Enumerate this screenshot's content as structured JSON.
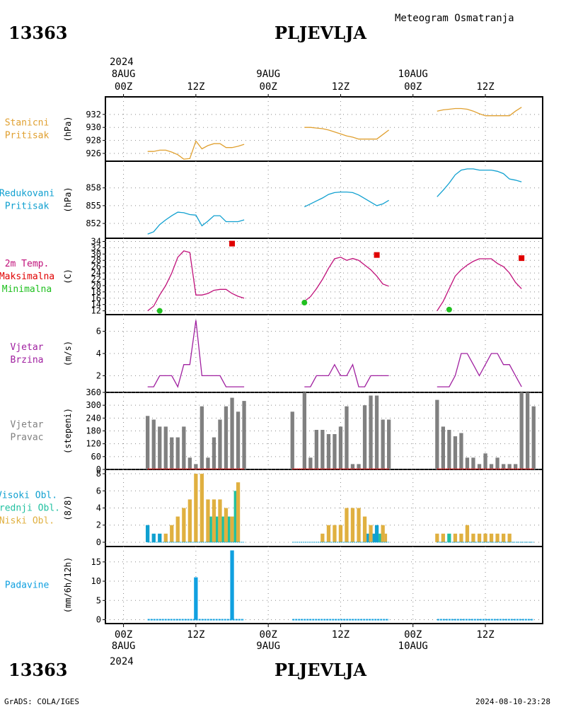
{
  "header": {
    "station_id": "13363",
    "station_name": "PLJEVLJA",
    "product": "Meteogram Osmatranja"
  },
  "footer": {
    "station_id": "13363",
    "station_name": "PLJEVLJA",
    "credit": "GrADS: COLA/IGES",
    "timestamp": "2024-08-10-23:28"
  },
  "colors": {
    "pressure": "#e0a030",
    "reduced": "#10a0d0",
    "temp": "#c0107a",
    "tmax": "#e00000",
    "tmin": "#20c020",
    "wind": "#a020a0",
    "dir": "#808080",
    "high": "#10a0d0",
    "mid": "#20c0a0",
    "low": "#e0b040",
    "precip": "#10a0e0"
  },
  "time_axis": {
    "top_year": "2024",
    "top_labels": [
      {
        "t": 0,
        "date": "8AUG",
        "hour": "00Z"
      },
      {
        "t": 12,
        "date": "",
        "hour": "12Z"
      },
      {
        "t": 24,
        "date": "9AUG",
        "hour": "00Z"
      },
      {
        "t": 36,
        "date": "",
        "hour": "12Z"
      },
      {
        "t": 48,
        "date": "10AUG",
        "hour": "00Z"
      },
      {
        "t": 60,
        "date": "",
        "hour": "12Z"
      }
    ],
    "bottom_labels": [
      {
        "t": 0,
        "hour": "00Z",
        "date": "8AUG"
      },
      {
        "t": 12,
        "hour": "12Z",
        "date": ""
      },
      {
        "t": 24,
        "hour": "00Z",
        "date": "9AUG"
      },
      {
        "t": 36,
        "hour": "12Z",
        "date": ""
      },
      {
        "t": 48,
        "hour": "00Z",
        "date": "10AUG"
      },
      {
        "t": 60,
        "hour": "12Z",
        "date": ""
      }
    ],
    "bottom_year": "2024"
  },
  "chart_data": [
    {
      "type": "line",
      "id": "p1",
      "name_lines": [
        "Stanicni",
        "Pritisak"
      ],
      "unit": "(hPa)",
      "ylim": [
        924.8,
        934.7
      ],
      "yticks": [
        926,
        928,
        930,
        932
      ],
      "color_key": "pressure",
      "series": [
        {
          "x": [
            4,
            5,
            6,
            7,
            8,
            9,
            10,
            11,
            12,
            13,
            14,
            15,
            16,
            17,
            18,
            19,
            20
          ],
          "y": [
            926.3,
            926.3,
            926.5,
            926.5,
            926.2,
            925.8,
            925.1,
            925.2,
            927.9,
            926.7,
            927.2,
            927.5,
            927.5,
            926.9,
            926.9,
            927.1,
            927.4
          ]
        },
        {
          "x": [
            30,
            31,
            32,
            33,
            34,
            35,
            36,
            37,
            38,
            39,
            40,
            41,
            42,
            43,
            44
          ],
          "y": [
            930.0,
            930.0,
            929.9,
            929.8,
            929.6,
            929.3,
            929.0,
            928.7,
            928.5,
            928.2,
            928.2,
            928.2,
            928.2,
            928.9,
            929.6
          ]
        },
        {
          "x": [
            52,
            53,
            54,
            55,
            56,
            57,
            58,
            59,
            60,
            61,
            62,
            63,
            64,
            65,
            66
          ],
          "y": [
            932.5,
            932.7,
            932.8,
            932.9,
            932.9,
            932.8,
            932.5,
            932.1,
            931.8,
            931.8,
            931.8,
            931.8,
            931.8,
            932.5,
            933.1
          ]
        }
      ]
    },
    {
      "type": "line",
      "id": "p2",
      "name_lines": [
        "Redukovani",
        "Pritisak"
      ],
      "unit": "(hPa)",
      "ylim": [
        849.5,
        862.5
      ],
      "yticks": [
        852,
        855,
        858
      ],
      "color_key": "reduced",
      "series": [
        {
          "x": [
            4,
            5,
            6,
            7,
            8,
            9,
            10,
            11,
            12,
            13,
            14,
            15,
            16,
            17,
            18,
            19,
            20
          ],
          "y": [
            850.2,
            850.6,
            851.8,
            852.6,
            853.3,
            853.9,
            853.8,
            853.5,
            853.4,
            851.6,
            852.4,
            853.3,
            853.3,
            852.3,
            852.3,
            852.3,
            852.6
          ]
        },
        {
          "x": [
            30,
            31,
            32,
            33,
            34,
            35,
            36,
            37,
            38,
            39,
            40,
            41,
            42,
            43,
            44
          ],
          "y": [
            854.8,
            855.3,
            855.8,
            856.3,
            856.9,
            857.2,
            857.3,
            857.3,
            857.2,
            856.8,
            856.2,
            855.6,
            855.0,
            855.3,
            855.9
          ]
        },
        {
          "x": [
            52,
            53,
            54,
            55,
            56,
            57,
            58,
            59,
            60,
            61,
            62,
            63,
            64,
            65,
            66
          ],
          "y": [
            856.5,
            857.6,
            858.8,
            860.2,
            861.0,
            861.2,
            861.2,
            861.0,
            861.0,
            861.0,
            860.8,
            860.4,
            859.5,
            859.3,
            859.0
          ]
        }
      ]
    },
    {
      "type": "line",
      "id": "p3",
      "name_lines": [
        "2m Temp.",
        "Maksimalna",
        "Minimalna"
      ],
      "name_colors": [
        "temp",
        "tmax",
        "tmin"
      ],
      "unit": "(C)",
      "ylim": [
        10.8,
        35.0
      ],
      "yticks": [
        12,
        14,
        16,
        18,
        20,
        22,
        24,
        26,
        28,
        30,
        32,
        34
      ],
      "color_key": "temp",
      "series": [
        {
          "x": [
            4,
            5,
            6,
            7,
            8,
            9,
            10,
            11,
            12,
            13,
            14,
            15,
            16,
            17,
            18,
            19,
            20
          ],
          "y": [
            12.0,
            13.5,
            17.0,
            20.0,
            24.0,
            29.0,
            31.0,
            30.5,
            17.0,
            17.0,
            17.5,
            18.5,
            18.8,
            18.8,
            17.5,
            16.6,
            16.0
          ]
        },
        {
          "x": [
            30,
            31,
            32,
            33,
            34,
            35,
            36,
            37,
            38,
            39,
            40,
            41,
            42,
            43,
            44
          ],
          "y": [
            15.0,
            16.5,
            19.0,
            22.0,
            25.5,
            28.5,
            29.0,
            28.0,
            28.6,
            28.0,
            26.5,
            25.0,
            23.0,
            20.5,
            19.8
          ]
        },
        {
          "x": [
            52,
            53,
            54,
            55,
            56,
            57,
            58,
            59,
            60,
            61,
            62,
            63,
            64,
            65,
            66
          ],
          "y": [
            12.0,
            15.0,
            19.0,
            23.0,
            25.0,
            26.5,
            27.7,
            28.5,
            28.5,
            28.5,
            27.0,
            26.0,
            24.0,
            21.0,
            19.0
          ]
        }
      ],
      "max_points": [
        {
          "x": 18,
          "y": 33.3
        },
        {
          "x": 42,
          "y": 29.7
        },
        {
          "x": 66,
          "y": 28.7
        }
      ],
      "min_points": [
        {
          "x": 6,
          "y": 12.0
        },
        {
          "x": 30,
          "y": 14.6
        },
        {
          "x": 54,
          "y": 12.4
        }
      ]
    },
    {
      "type": "line",
      "id": "p4",
      "name_lines": [
        "Vjetar",
        "Brzina"
      ],
      "unit": "(m/s)",
      "ylim": [
        0.5,
        7.5
      ],
      "yticks": [
        2,
        4,
        6
      ],
      "color_key": "wind",
      "series": [
        {
          "x": [
            4,
            5,
            6,
            7,
            8,
            9,
            10,
            11,
            12,
            13,
            14,
            15,
            16,
            17,
            18,
            19,
            20
          ],
          "y": [
            1,
            1,
            2,
            2,
            2,
            1,
            3,
            3,
            7,
            2,
            2,
            2,
            2,
            1,
            1,
            1,
            1
          ]
        },
        {
          "x": [
            30,
            31,
            32,
            33,
            34,
            35,
            36,
            37,
            38,
            39,
            40,
            41,
            42,
            43,
            44
          ],
          "y": [
            1,
            1,
            2,
            2,
            2,
            3,
            2,
            2,
            3,
            1,
            1,
            2,
            2,
            2,
            2
          ]
        },
        {
          "x": [
            52,
            53,
            54,
            55,
            56,
            57,
            58,
            59,
            60,
            61,
            62,
            63,
            64,
            65,
            66
          ],
          "y": [
            1,
            1,
            1,
            2,
            4,
            4,
            3,
            2,
            3,
            4,
            4,
            3,
            3,
            2,
            1
          ]
        }
      ]
    },
    {
      "type": "bar",
      "id": "p5",
      "name_lines": [
        "Vjetar",
        "Pravac"
      ],
      "unit": "(stepeni)",
      "ylim": [
        0,
        360
      ],
      "yticks": [
        0,
        60,
        120,
        180,
        240,
        300,
        360
      ],
      "color_key": "dir",
      "bars": [
        {
          "x": 4,
          "v": 250
        },
        {
          "x": 5,
          "v": 233
        },
        {
          "x": 6,
          "v": 200
        },
        {
          "x": 7,
          "v": 200
        },
        {
          "x": 8,
          "v": 150
        },
        {
          "x": 9,
          "v": 150
        },
        {
          "x": 10,
          "v": 200
        },
        {
          "x": 11,
          "v": 55
        },
        {
          "x": 12,
          "v": 25
        },
        {
          "x": 13,
          "v": 295
        },
        {
          "x": 14,
          "v": 55
        },
        {
          "x": 15,
          "v": 150
        },
        {
          "x": 16,
          "v": 233
        },
        {
          "x": 17,
          "v": 295
        },
        {
          "x": 18,
          "v": 335
        },
        {
          "x": 19,
          "v": 270
        },
        {
          "x": 20,
          "v": 320
        },
        {
          "x": 28,
          "v": 270
        },
        {
          "x": 30,
          "v": 360
        },
        {
          "x": 31,
          "v": 55
        },
        {
          "x": 32,
          "v": 185
        },
        {
          "x": 33,
          "v": 185
        },
        {
          "x": 34,
          "v": 165
        },
        {
          "x": 35,
          "v": 165
        },
        {
          "x": 36,
          "v": 200
        },
        {
          "x": 37,
          "v": 295
        },
        {
          "x": 38,
          "v": 25
        },
        {
          "x": 39,
          "v": 25
        },
        {
          "x": 40,
          "v": 300
        },
        {
          "x": 41,
          "v": 345
        },
        {
          "x": 42,
          "v": 345
        },
        {
          "x": 43,
          "v": 233
        },
        {
          "x": 44,
          "v": 233
        },
        {
          "x": 52,
          "v": 325
        },
        {
          "x": 53,
          "v": 200
        },
        {
          "x": 54,
          "v": 185
        },
        {
          "x": 55,
          "v": 155
        },
        {
          "x": 56,
          "v": 170
        },
        {
          "x": 57,
          "v": 55
        },
        {
          "x": 58,
          "v": 55
        },
        {
          "x": 59,
          "v": 25
        },
        {
          "x": 60,
          "v": 75
        },
        {
          "x": 61,
          "v": 25
        },
        {
          "x": 62,
          "v": 55
        },
        {
          "x": 63,
          "v": 25
        },
        {
          "x": 64,
          "v": 25
        },
        {
          "x": 65,
          "v": 25
        },
        {
          "x": 66,
          "v": 360
        },
        {
          "x": 67,
          "v": 360
        },
        {
          "x": 68,
          "v": 295
        }
      ]
    },
    {
      "type": "bar",
      "id": "p6",
      "name_lines": [
        "Visoki Obl.",
        "Srednji Obl.",
        "Niski Obl."
      ],
      "name_colors": [
        "high",
        "mid",
        "low"
      ],
      "unit": "(8/8)",
      "ylim": [
        -0.5,
        8.5
      ],
      "yticks": [
        0,
        2,
        4,
        6,
        8
      ],
      "bars": [
        {
          "x": 4,
          "v": 2,
          "c": "high"
        },
        {
          "x": 5,
          "v": 1,
          "c": "high"
        },
        {
          "x": 6,
          "v": 1,
          "c": "high"
        },
        {
          "x": 7,
          "v": 1,
          "c": "low"
        },
        {
          "x": 8,
          "v": 2,
          "c": "low"
        },
        {
          "x": 9,
          "v": 3,
          "c": "low"
        },
        {
          "x": 10,
          "v": 4,
          "c": "low"
        },
        {
          "x": 11,
          "v": 5,
          "c": "low"
        },
        {
          "x": 12,
          "v": 8,
          "c": "low"
        },
        {
          "x": 13,
          "v": 8,
          "c": "low"
        },
        {
          "x": 14,
          "v": 5,
          "c": "low"
        },
        {
          "x": 14.5,
          "v": 3,
          "c": "mid"
        },
        {
          "x": 15,
          "v": 5,
          "c": "low"
        },
        {
          "x": 15.5,
          "v": 3,
          "c": "mid"
        },
        {
          "x": 16,
          "v": 5,
          "c": "low"
        },
        {
          "x": 16.5,
          "v": 3,
          "c": "mid"
        },
        {
          "x": 17,
          "v": 4,
          "c": "low"
        },
        {
          "x": 17.5,
          "v": 3,
          "c": "mid"
        },
        {
          "x": 18,
          "v": 3,
          "c": "low"
        },
        {
          "x": 18.5,
          "v": 6,
          "c": "mid"
        },
        {
          "x": 19,
          "v": 7,
          "c": "low"
        },
        {
          "x": 33,
          "v": 1,
          "c": "low"
        },
        {
          "x": 34,
          "v": 2,
          "c": "low"
        },
        {
          "x": 35,
          "v": 2,
          "c": "low"
        },
        {
          "x": 36,
          "v": 2,
          "c": "low"
        },
        {
          "x": 37,
          "v": 4,
          "c": "low"
        },
        {
          "x": 38,
          "v": 4,
          "c": "low"
        },
        {
          "x": 39,
          "v": 4,
          "c": "low"
        },
        {
          "x": 40,
          "v": 3,
          "c": "low"
        },
        {
          "x": 40.5,
          "v": 1,
          "c": "high"
        },
        {
          "x": 41,
          "v": 2,
          "c": "low"
        },
        {
          "x": 41.5,
          "v": 1,
          "c": "high"
        },
        {
          "x": 42,
          "v": 2,
          "c": "high"
        },
        {
          "x": 42.5,
          "v": 1,
          "c": "mid"
        },
        {
          "x": 43,
          "v": 2,
          "c": "low"
        },
        {
          "x": 43.5,
          "v": 1,
          "c": "low"
        },
        {
          "x": 52,
          "v": 1,
          "c": "low"
        },
        {
          "x": 53,
          "v": 1,
          "c": "low"
        },
        {
          "x": 54,
          "v": 1,
          "c": "mid"
        },
        {
          "x": 55,
          "v": 1,
          "c": "low"
        },
        {
          "x": 56,
          "v": 1,
          "c": "low"
        },
        {
          "x": 57,
          "v": 2,
          "c": "low"
        },
        {
          "x": 58,
          "v": 1,
          "c": "low"
        },
        {
          "x": 59,
          "v": 1,
          "c": "low"
        },
        {
          "x": 60,
          "v": 1,
          "c": "low"
        },
        {
          "x": 61,
          "v": 1,
          "c": "low"
        },
        {
          "x": 62,
          "v": 1,
          "c": "low"
        },
        {
          "x": 63,
          "v": 1,
          "c": "low"
        },
        {
          "x": 64,
          "v": 1,
          "c": "low"
        }
      ]
    },
    {
      "type": "bar",
      "id": "p7",
      "name_lines": [
        "Padavine"
      ],
      "unit": "(mm/6h/12h)",
      "ylim": [
        -1,
        19
      ],
      "yticks": [
        0,
        5,
        10,
        15
      ],
      "color_key": "precip",
      "bars": [
        {
          "x": 12,
          "v": 11
        },
        {
          "x": 18,
          "v": 18
        }
      ],
      "baseline_ranges": [
        [
          4,
          20
        ],
        [
          28,
          44
        ],
        [
          52,
          68
        ]
      ]
    }
  ]
}
